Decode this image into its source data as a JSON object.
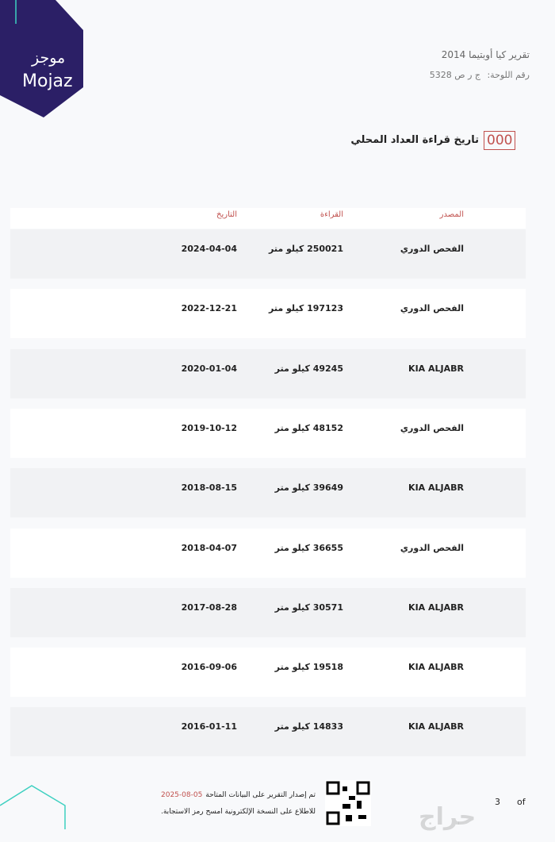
{
  "logo": {
    "arabic": "موجز",
    "latin": "Mojaz"
  },
  "header": {
    "title": "تقرير كيا أوبتيما 2014",
    "plate_label": "رقم اللوحة:",
    "plate_value": "ج ر ص 5328"
  },
  "section": {
    "icon_text": "000",
    "title": "تاريخ قراءة العداد المحلي"
  },
  "table": {
    "columns": [
      "المصدر",
      "القراءة",
      "التاريخ"
    ],
    "rows": [
      [
        "الفحص الدوري",
        "250021 كيلو متر",
        "2024-04-04"
      ],
      [
        "الفحص الدوري",
        "197123 كيلو متر",
        "2022-12-21"
      ],
      [
        "KIA ALJABR",
        "49245 كيلو متر",
        "2020-01-04"
      ],
      [
        "الفحص الدوري",
        "48152 كيلو متر",
        "2019-10-12"
      ],
      [
        "KIA ALJABR",
        "39649 كيلو متر",
        "2018-08-15"
      ],
      [
        "الفحص الدوري",
        "36655 كيلو متر",
        "2018-04-07"
      ],
      [
        "KIA ALJABR",
        "30571 كيلو متر",
        "2017-08-28"
      ],
      [
        "KIA ALJABR",
        "19518 كيلو متر",
        "2016-09-06"
      ],
      [
        "KIA ALJABR",
        "14833 كيلو متر",
        "2016-01-11"
      ]
    ]
  },
  "footer": {
    "issued_text": "تم إصدار التقرير على البيانات المتاحة",
    "issued_date": "2025-08-05",
    "scan_text": "للاطلاع على النسخة الإلكترونية امسح رمز الاستجابة.",
    "page": "3",
    "of": "of"
  },
  "watermark": "حراج"
}
